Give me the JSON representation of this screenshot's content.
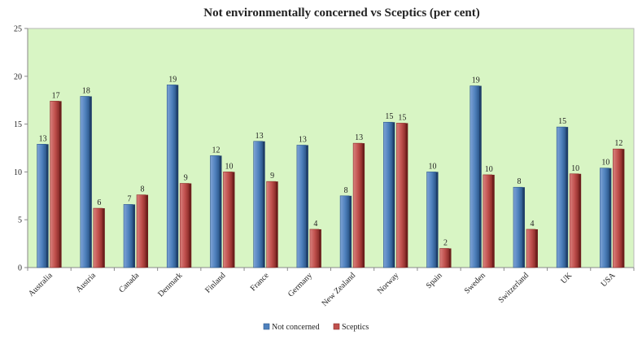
{
  "chart_data": {
    "type": "bar",
    "title": "Not environmentally concerned vs Sceptics (per cent)",
    "xlabel": "",
    "ylabel": "",
    "ylim": [
      0,
      25
    ],
    "yticks": [
      0,
      5,
      10,
      15,
      20,
      25
    ],
    "grid": false,
    "legend_position": "bottom",
    "categories": [
      "Australia",
      "Austria",
      "Canada",
      "Denmark",
      "Finland",
      "France",
      "Germany",
      "New Zealand",
      "Norway",
      "Spain",
      "Sweden",
      "Switzerland",
      "UK",
      "USA"
    ],
    "series": [
      {
        "name": "Not concerned",
        "color": "#4F81BD",
        "values": [
          12.9,
          17.9,
          6.6,
          19.1,
          11.7,
          13.2,
          12.8,
          7.5,
          15.2,
          10.0,
          19.0,
          8.4,
          14.7,
          10.4
        ],
        "labels": [
          "13",
          "18",
          "7",
          "19",
          "12",
          "13",
          "13",
          "8",
          "15",
          "10",
          "19",
          "8",
          "15",
          "10"
        ]
      },
      {
        "name": "Sceptics",
        "color": "#C0504D",
        "values": [
          17.4,
          6.2,
          7.6,
          8.8,
          10.0,
          9.0,
          4.0,
          13.0,
          15.1,
          2.0,
          9.7,
          4.0,
          9.8,
          12.4
        ],
        "labels": [
          "17",
          "6",
          "8",
          "9",
          "10",
          "9",
          "4",
          "13",
          "15",
          "2",
          "10",
          "4",
          "10",
          "12"
        ]
      }
    ],
    "plot_background": "#D8F5C4"
  }
}
